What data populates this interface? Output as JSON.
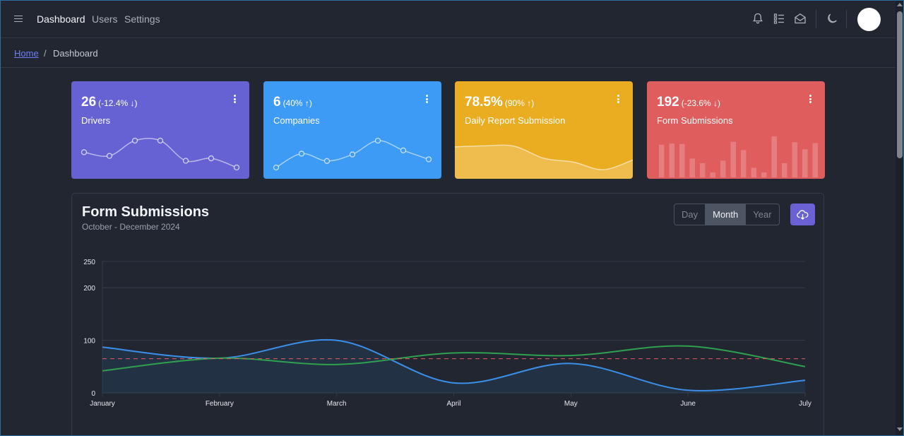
{
  "header": {
    "nav": [
      {
        "label": "Dashboard"
      },
      {
        "label": "Users"
      },
      {
        "label": "Settings"
      }
    ],
    "icons": [
      "bell-icon",
      "list-icon",
      "envelope-open-icon",
      "moon-icon"
    ]
  },
  "breadcrumb": {
    "home": "Home",
    "separator": "/",
    "current": "Dashboard"
  },
  "widgets": [
    {
      "value": "26",
      "delta": "(-12.4% ↓)",
      "label": "Drivers",
      "color": "#6762d3",
      "chart": "line",
      "points": [
        65,
        59,
        84,
        84,
        51,
        55,
        40
      ]
    },
    {
      "value": "6",
      "delta": "(40% ↑)",
      "label": "Companies",
      "color": "#3d9af5",
      "chart": "line",
      "points": [
        1,
        18,
        9,
        17,
        34,
        22,
        11
      ]
    },
    {
      "value": "78.5%",
      "delta": "(90% ↑)",
      "label": "Daily Report Submission",
      "color": "#eaad22",
      "chart": "area",
      "points": [
        78,
        81,
        80,
        45,
        34,
        12,
        40
      ]
    },
    {
      "value": "192",
      "delta": "(-23.6% ↓)",
      "label": "Form Submissions",
      "color": "#e05d5e",
      "chart": "bar",
      "points": [
        78,
        81,
        80,
        45,
        34,
        12,
        40,
        85,
        65,
        23,
        12,
        98,
        34,
        84,
        67,
        82
      ]
    }
  ],
  "main_chart": {
    "title": "Form Submissions",
    "subtitle": "October - December 2024",
    "periods": [
      "Day",
      "Month",
      "Year"
    ],
    "active_period": "Month",
    "download_icon": "cloud-download-icon"
  },
  "colors": {
    "background": "#212631",
    "series_blue": "#3b8fe8",
    "series_green": "#2ea04f",
    "threshold_red": "#e05d5e"
  },
  "chart_data": {
    "type": "line",
    "categories": [
      "January",
      "February",
      "March",
      "April",
      "May",
      "June",
      "July"
    ],
    "series": [
      {
        "values": [
          87,
          66,
          100,
          19,
          56,
          5,
          24
        ],
        "color": "#3b8fe8",
        "fill": true
      },
      {
        "values": [
          42,
          66,
          54,
          76,
          71,
          89,
          50
        ],
        "color": "#2ea04f",
        "fill": false
      },
      {
        "values": [
          65,
          65,
          65,
          65,
          65,
          65,
          65
        ],
        "color": "#e05d5e",
        "dashed": true
      }
    ],
    "yticks": [
      0,
      100,
      200,
      250
    ],
    "ylim": [
      0,
      250
    ],
    "grid": true
  }
}
